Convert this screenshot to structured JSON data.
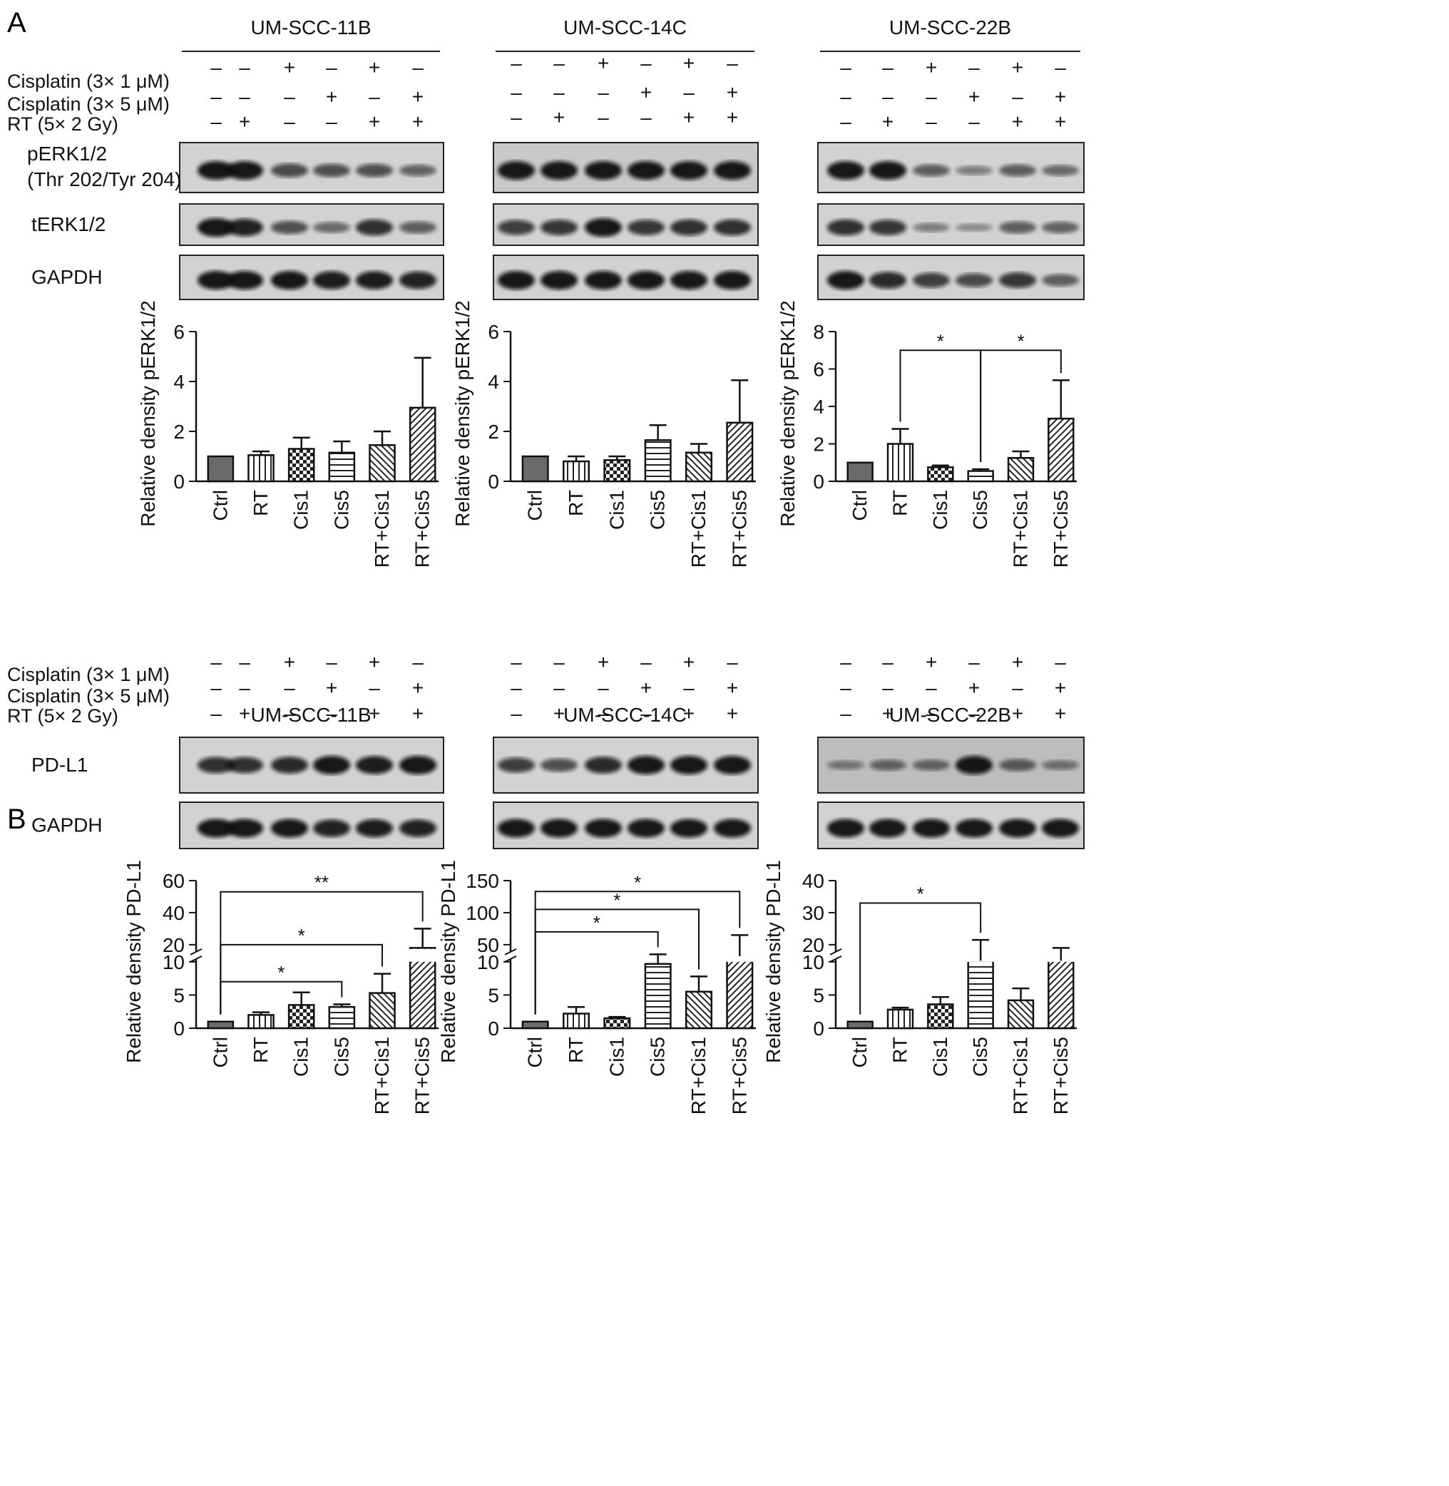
{
  "panels": [
    {
      "letter": "A",
      "conditions": [
        {
          "label": "Cisplatin (3× 1 μM)",
          "signs": [
            "–",
            "–",
            "+",
            "–",
            "+",
            "–"
          ]
        },
        {
          "label": "Cisplatin (3× 5 μM)",
          "signs": [
            "–",
            "–",
            "–",
            "+",
            "–",
            "+"
          ]
        },
        {
          "label": "RT (5× 2 Gy)",
          "signs": [
            "–",
            "+",
            "–",
            "–",
            "+",
            "+"
          ]
        }
      ],
      "blot_labels": [
        [
          "pERK1/2",
          "(Thr 202/Tyr 204)"
        ],
        [
          "tERK1/2"
        ],
        [
          "GAPDH"
        ]
      ],
      "cell_lines": [
        "UM-SCC-11B",
        "UM-SCC-14C",
        "UM-SCC-22B"
      ]
    },
    {
      "letter": "B",
      "conditions": [
        {
          "label": "Cisplatin (3× 1 μM)",
          "signs": [
            "–",
            "–",
            "+",
            "–",
            "+",
            "–"
          ]
        },
        {
          "label": "Cisplatin (3× 5 μM)",
          "signs": [
            "–",
            "–",
            "–",
            "+",
            "–",
            "+"
          ]
        },
        {
          "label": "RT (5× 2 Gy)",
          "signs": [
            "–",
            "+",
            "–",
            "–",
            "+",
            "+"
          ]
        }
      ],
      "blot_labels": [
        [
          "PD-L1"
        ],
        [
          "GAPDH"
        ]
      ],
      "cell_lines": [
        "UM-SCC-11B",
        "UM-SCC-14C",
        "UM-SCC-22B"
      ]
    }
  ],
  "chart_data": [
    {
      "type": "bar",
      "panel": "A",
      "cell_line": "UM-SCC-11B",
      "categories": [
        "Ctrl",
        "RT",
        "Cis1",
        "Cis5",
        "RT+Cis1",
        "RT+Cis5"
      ],
      "values": [
        1.0,
        1.05,
        1.3,
        1.15,
        1.45,
        2.95
      ],
      "errors": [
        0,
        0.15,
        0.45,
        0.45,
        0.55,
        2.0
      ],
      "ylabel": "Relative density pERK1/2",
      "ylim": [
        0,
        6
      ],
      "yticks": [
        0,
        2,
        4,
        6
      ],
      "significance": []
    },
    {
      "type": "bar",
      "panel": "A",
      "cell_line": "UM-SCC-14C",
      "categories": [
        "Ctrl",
        "RT",
        "Cis1",
        "Cis5",
        "RT+Cis1",
        "RT+Cis5"
      ],
      "values": [
        1.0,
        0.8,
        0.85,
        1.65,
        1.15,
        2.35
      ],
      "errors": [
        0,
        0.2,
        0.15,
        0.6,
        0.35,
        1.7
      ],
      "ylabel": "Relative density pERK1/2",
      "ylim": [
        0,
        6
      ],
      "yticks": [
        0,
        2,
        4,
        6
      ],
      "significance": []
    },
    {
      "type": "bar",
      "panel": "A",
      "cell_line": "UM-SCC-22B",
      "categories": [
        "Ctrl",
        "RT",
        "Cis1",
        "Cis5",
        "RT+Cis1",
        "RT+Cis5"
      ],
      "values": [
        1.0,
        2.0,
        0.75,
        0.55,
        1.25,
        3.35
      ],
      "errors": [
        0,
        0.8,
        0.1,
        0.1,
        0.35,
        2.05
      ],
      "ylabel": "Relative density pERK1/2",
      "ylim": [
        0,
        8
      ],
      "yticks": [
        0,
        2,
        4,
        6,
        8
      ],
      "significance": [
        {
          "from": 1,
          "to": 3,
          "label": "*",
          "level": 7.0
        },
        {
          "from": 3,
          "to": 5,
          "label": "*",
          "level": 7.0
        }
      ]
    },
    {
      "type": "bar",
      "panel": "B",
      "cell_line": "UM-SCC-11B",
      "categories": [
        "Ctrl",
        "RT",
        "Cis1",
        "Cis5",
        "RT+Cis1",
        "RT+Cis5"
      ],
      "values": [
        1.0,
        2.0,
        3.5,
        3.2,
        5.3,
        18.0
      ],
      "errors": [
        0,
        0.4,
        1.9,
        0.4,
        2.9,
        12.0
      ],
      "ylabel": "Relative density PD-L1",
      "ylim": [
        0,
        60
      ],
      "yticks": [
        0,
        5,
        10,
        20,
        40,
        60
      ],
      "axis_break": {
        "lower": [
          0,
          10
        ],
        "upper": [
          10,
          60
        ]
      },
      "significance": [
        {
          "from": 0,
          "to": 3,
          "label": "*",
          "level": 7.0
        },
        {
          "from": 0,
          "to": 4,
          "label": "*",
          "level": 20
        },
        {
          "from": 0,
          "to": 5,
          "label": "**",
          "level": 53
        }
      ]
    },
    {
      "type": "bar",
      "panel": "B",
      "cell_line": "UM-SCC-14C",
      "categories": [
        "Ctrl",
        "RT",
        "Cis1",
        "Cis5",
        "RT+Cis1",
        "RT+Cis5"
      ],
      "values": [
        1.0,
        2.2,
        1.5,
        20,
        5.5,
        32
      ],
      "errors": [
        0,
        1.0,
        0.2,
        15,
        2.3,
        33
      ],
      "ylabel": "Relative density PD-L1",
      "ylim": [
        0,
        150
      ],
      "yticks": [
        0,
        5,
        10,
        50,
        100,
        150
      ],
      "axis_break": {
        "lower": [
          0,
          10
        ],
        "upper": [
          10,
          150
        ]
      },
      "significance": [
        {
          "from": 0,
          "to": 3,
          "label": "*",
          "level": 70
        },
        {
          "from": 0,
          "to": 4,
          "label": "*",
          "level": 105
        },
        {
          "from": 0,
          "to": 5,
          "label": "*",
          "level": 133
        }
      ]
    },
    {
      "type": "bar",
      "panel": "B",
      "cell_line": "UM-SCC-22B",
      "categories": [
        "Ctrl",
        "RT",
        "Cis1",
        "Cis5",
        "RT+Cis1",
        "RT+Cis5"
      ],
      "values": [
        1.0,
        2.8,
        3.6,
        15,
        4.2,
        15
      ],
      "errors": [
        0,
        0.3,
        1.1,
        6.5,
        1.8,
        4.0
      ],
      "ylabel": "Relative density PD-L1",
      "ylim": [
        0,
        40
      ],
      "yticks": [
        0,
        5,
        10,
        20,
        30,
        40
      ],
      "axis_break": {
        "lower": [
          0,
          10
        ],
        "upper": [
          10,
          40
        ]
      },
      "significance": [
        {
          "from": 0,
          "to": 3,
          "label": "*",
          "level": 33
        }
      ]
    }
  ]
}
